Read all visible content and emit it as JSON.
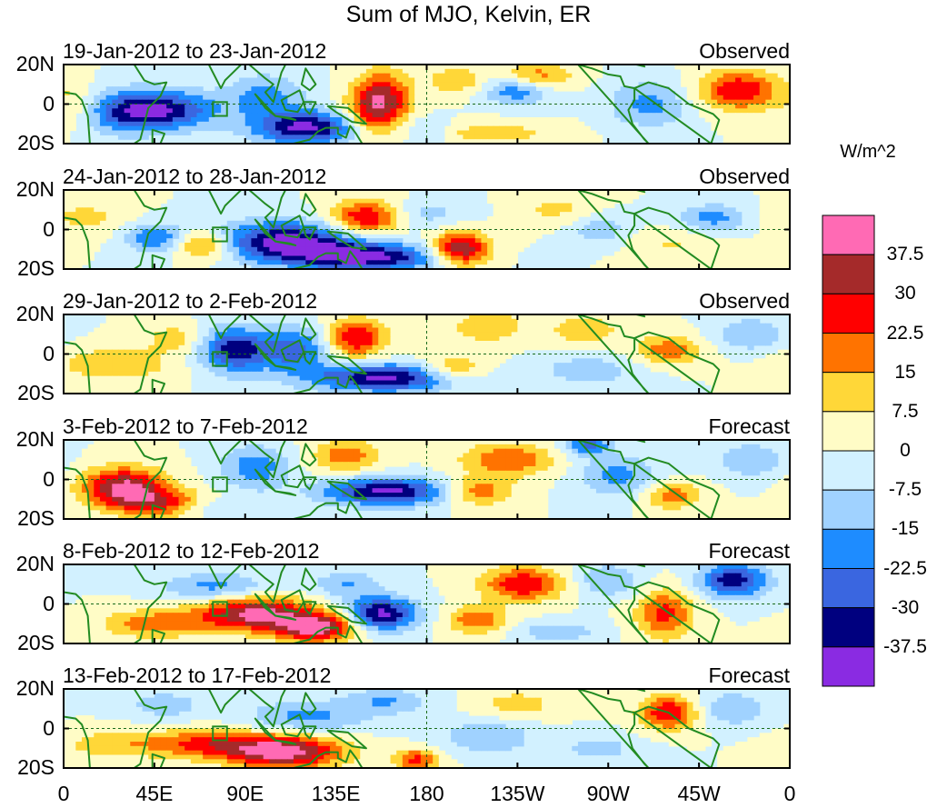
{
  "title": "Sum of MJO, Kelvin, ER",
  "panels": [
    {
      "date_range": "19-Jan-2012 to 23-Jan-2012",
      "status": "Observed"
    },
    {
      "date_range": "24-Jan-2012 to 28-Jan-2012",
      "status": "Observed"
    },
    {
      "date_range": "29-Jan-2012 to 2-Feb-2012",
      "status": "Observed"
    },
    {
      "date_range": "3-Feb-2012 to 7-Feb-2012",
      "status": "Forecast"
    },
    {
      "date_range": "8-Feb-2012 to 12-Feb-2012",
      "status": "Forecast"
    },
    {
      "date_range": "13-Feb-2012 to 17-Feb-2012",
      "status": "Forecast"
    }
  ],
  "y_ticks": [
    "20N",
    "0",
    "20S"
  ],
  "x_ticks": [
    "0",
    "45E",
    "90E",
    "135E",
    "180",
    "135W",
    "90W",
    "45W",
    "0"
  ],
  "colorbar": {
    "units": "W/m^2",
    "labels": [
      "37.5",
      "30",
      "22.5",
      "15",
      "7.5",
      "0",
      "-7.5",
      "-15",
      "-22.5",
      "-30",
      "-37.5"
    ],
    "colors_top_to_bottom": [
      "#ff6ab4",
      "#a52a2a",
      "#ff0000",
      "#ff7300",
      "#ffd738",
      "#fffcc6",
      "#d2f1ff",
      "#a0d2ff",
      "#1e8cff",
      "#3a66e0",
      "#00007f",
      "#8a2be2"
    ]
  },
  "chart_data": {
    "type": "heatmap",
    "title": "Sum of MJO, Kelvin, ER",
    "variable_units": "W/m^2",
    "contour_levels": [
      -37.5,
      -30,
      -22.5,
      -15,
      -7.5,
      0,
      7.5,
      15,
      22.5,
      30,
      37.5
    ],
    "x_range_deg_east": [
      0,
      360
    ],
    "y_range_deg_lat": [
      -20,
      20
    ],
    "grid": false,
    "legend": "right colorbar",
    "panels": [
      {
        "label": "19-Jan-2012 to 23-Jan-2012",
        "status": "Observed",
        "features": [
          {
            "lon": 50,
            "lat": -3,
            "value": -35,
            "sx": 18,
            "sy": 7
          },
          {
            "lon": 26,
            "lat": -4,
            "value": -20,
            "sx": 14,
            "sy": 8
          },
          {
            "lon": 120,
            "lat": -12,
            "value": -40,
            "sx": 18,
            "sy": 6
          },
          {
            "lon": 100,
            "lat": 4,
            "value": -18,
            "sx": 14,
            "sy": 8
          },
          {
            "lon": 160,
            "lat": 2,
            "value": 30,
            "sx": 9,
            "sy": 10
          },
          {
            "lon": 150,
            "lat": -3,
            "value": 20,
            "sx": 8,
            "sy": 10
          },
          {
            "lon": 225,
            "lat": 7,
            "value": -22,
            "sx": 12,
            "sy": 5
          },
          {
            "lon": 195,
            "lat": 12,
            "value": 15,
            "sx": 10,
            "sy": 5
          },
          {
            "lon": 235,
            "lat": 14,
            "value": 20,
            "sx": 12,
            "sy": 5
          },
          {
            "lon": 212,
            "lat": -15,
            "value": 12,
            "sx": 22,
            "sy": 4
          },
          {
            "lon": 290,
            "lat": 0,
            "value": -18,
            "sx": 14,
            "sy": 8
          },
          {
            "lon": 335,
            "lat": 7,
            "value": 30,
            "sx": 14,
            "sy": 7
          },
          {
            "lon": 180,
            "lat": -14,
            "value": -12,
            "sx": 8,
            "sy": 5
          },
          {
            "lon": 8,
            "lat": -2,
            "value": 10,
            "sx": 10,
            "sy": 8
          }
        ]
      },
      {
        "label": "24-Jan-2012 to 28-Jan-2012",
        "status": "Observed",
        "features": [
          {
            "lon": 110,
            "lat": -6,
            "value": -40,
            "sx": 24,
            "sy": 7
          },
          {
            "lon": 150,
            "lat": -14,
            "value": -40,
            "sx": 26,
            "sy": 5
          },
          {
            "lon": 70,
            "lat": -8,
            "value": 25,
            "sx": 10,
            "sy": 5
          },
          {
            "lon": 45,
            "lat": -4,
            "value": -22,
            "sx": 10,
            "sy": 5
          },
          {
            "lon": 150,
            "lat": 6,
            "value": 32,
            "sx": 12,
            "sy": 6
          },
          {
            "lon": 197,
            "lat": -10,
            "value": 40,
            "sx": 10,
            "sy": 6
          },
          {
            "lon": 180,
            "lat": 8,
            "value": -10,
            "sx": 14,
            "sy": 5
          },
          {
            "lon": 245,
            "lat": 10,
            "value": 10,
            "sx": 14,
            "sy": 6
          },
          {
            "lon": 265,
            "lat": 0,
            "value": -12,
            "sx": 12,
            "sy": 6
          },
          {
            "lon": 322,
            "lat": 6,
            "value": -18,
            "sx": 12,
            "sy": 5
          },
          {
            "lon": 300,
            "lat": -8,
            "value": 8,
            "sx": 16,
            "sy": 6
          },
          {
            "lon": 10,
            "lat": 6,
            "value": 10,
            "sx": 14,
            "sy": 6
          }
        ]
      },
      {
        "label": "29-Jan-2012 to 2-Feb-2012",
        "status": "Observed",
        "features": [
          {
            "lon": 85,
            "lat": 2,
            "value": -35,
            "sx": 12,
            "sy": 8
          },
          {
            "lon": 115,
            "lat": 2,
            "value": -25,
            "sx": 12,
            "sy": 8
          },
          {
            "lon": 145,
            "lat": 8,
            "value": 30,
            "sx": 10,
            "sy": 7
          },
          {
            "lon": 160,
            "lat": -12,
            "value": -40,
            "sx": 26,
            "sy": 5
          },
          {
            "lon": 25,
            "lat": -5,
            "value": 15,
            "sx": 20,
            "sy": 6
          },
          {
            "lon": 192,
            "lat": -8,
            "value": 20,
            "sx": 12,
            "sy": 5
          },
          {
            "lon": 210,
            "lat": 14,
            "value": 15,
            "sx": 12,
            "sy": 6
          },
          {
            "lon": 258,
            "lat": 12,
            "value": 12,
            "sx": 14,
            "sy": 6
          },
          {
            "lon": 260,
            "lat": -8,
            "value": -12,
            "sx": 18,
            "sy": 6
          },
          {
            "lon": 300,
            "lat": 2,
            "value": 20,
            "sx": 12,
            "sy": 5
          },
          {
            "lon": 340,
            "lat": 10,
            "value": -15,
            "sx": 12,
            "sy": 6
          },
          {
            "lon": 55,
            "lat": 8,
            "value": 12,
            "sx": 10,
            "sy": 5
          }
        ]
      },
      {
        "label": "3-Feb-2012 to 7-Feb-2012",
        "status": "Forecast",
        "features": [
          {
            "lon": 30,
            "lat": -4,
            "value": 40,
            "sx": 14,
            "sy": 7
          },
          {
            "lon": 50,
            "lat": -12,
            "value": 25,
            "sx": 16,
            "sy": 5
          },
          {
            "lon": 95,
            "lat": 6,
            "value": -20,
            "sx": 12,
            "sy": 8
          },
          {
            "lon": 160,
            "lat": -6,
            "value": -40,
            "sx": 22,
            "sy": 5
          },
          {
            "lon": 140,
            "lat": 12,
            "value": 20,
            "sx": 12,
            "sy": 6
          },
          {
            "lon": 205,
            "lat": -6,
            "value": 22,
            "sx": 12,
            "sy": 5
          },
          {
            "lon": 220,
            "lat": 10,
            "value": 22,
            "sx": 16,
            "sy": 6
          },
          {
            "lon": 275,
            "lat": 2,
            "value": -18,
            "sx": 14,
            "sy": 7
          },
          {
            "lon": 302,
            "lat": -8,
            "value": 20,
            "sx": 10,
            "sy": 5
          },
          {
            "lon": 340,
            "lat": 10,
            "value": -15,
            "sx": 12,
            "sy": 6
          },
          {
            "lon": 260,
            "lat": 18,
            "value": -25,
            "sx": 8,
            "sy": 4
          },
          {
            "lon": 70,
            "lat": -14,
            "value": -10,
            "sx": 12,
            "sy": 4
          }
        ]
      },
      {
        "label": "8-Feb-2012 to 12-Feb-2012",
        "status": "Forecast",
        "features": [
          {
            "lon": 95,
            "lat": -5,
            "value": 40,
            "sx": 20,
            "sy": 6
          },
          {
            "lon": 125,
            "lat": -12,
            "value": 40,
            "sx": 14,
            "sy": 5
          },
          {
            "lon": 45,
            "lat": -10,
            "value": 20,
            "sx": 18,
            "sy": 5
          },
          {
            "lon": 158,
            "lat": -5,
            "value": -40,
            "sx": 12,
            "sy": 6
          },
          {
            "lon": 75,
            "lat": 9,
            "value": -18,
            "sx": 18,
            "sy": 5
          },
          {
            "lon": 140,
            "lat": 10,
            "value": -15,
            "sx": 12,
            "sy": 5
          },
          {
            "lon": 228,
            "lat": 10,
            "value": 30,
            "sx": 14,
            "sy": 6
          },
          {
            "lon": 205,
            "lat": -8,
            "value": 22,
            "sx": 10,
            "sy": 5
          },
          {
            "lon": 298,
            "lat": -5,
            "value": 25,
            "sx": 10,
            "sy": 9
          },
          {
            "lon": 332,
            "lat": 12,
            "value": -35,
            "sx": 12,
            "sy": 6
          },
          {
            "lon": 270,
            "lat": 12,
            "value": -15,
            "sx": 12,
            "sy": 6
          },
          {
            "lon": 245,
            "lat": -14,
            "value": -12,
            "sx": 16,
            "sy": 4
          }
        ]
      },
      {
        "label": "13-Feb-2012 to 17-Feb-2012",
        "status": "Forecast",
        "features": [
          {
            "lon": 110,
            "lat": -12,
            "value": 40,
            "sx": 20,
            "sy": 6
          },
          {
            "lon": 70,
            "lat": -8,
            "value": 25,
            "sx": 24,
            "sy": 5
          },
          {
            "lon": 175,
            "lat": -16,
            "value": 25,
            "sx": 8,
            "sy": 4
          },
          {
            "lon": 120,
            "lat": 6,
            "value": -18,
            "sx": 20,
            "sy": 6
          },
          {
            "lon": 160,
            "lat": 14,
            "value": -15,
            "sx": 14,
            "sy": 5
          },
          {
            "lon": 50,
            "lat": 12,
            "value": -12,
            "sx": 14,
            "sy": 5
          },
          {
            "lon": 210,
            "lat": -4,
            "value": -15,
            "sx": 16,
            "sy": 6
          },
          {
            "lon": 225,
            "lat": 12,
            "value": 12,
            "sx": 14,
            "sy": 5
          },
          {
            "lon": 300,
            "lat": 8,
            "value": 30,
            "sx": 10,
            "sy": 6
          },
          {
            "lon": 332,
            "lat": 10,
            "value": -15,
            "sx": 12,
            "sy": 6
          },
          {
            "lon": 265,
            "lat": -10,
            "value": -10,
            "sx": 16,
            "sy": 5
          },
          {
            "lon": 20,
            "lat": -8,
            "value": 10,
            "sx": 16,
            "sy": 5
          }
        ]
      }
    ]
  }
}
